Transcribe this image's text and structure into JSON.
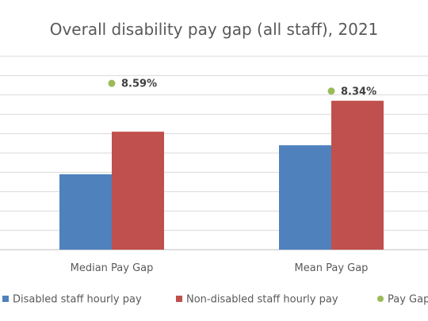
{
  "chart_data": {
    "type": "bar",
    "title": "Overall disability pay gap (all staff), 2021",
    "categories": [
      "Median Pay Gap",
      "Mean Pay Gap"
    ],
    "ylim": [
      0,
      100
    ],
    "grid": true,
    "legend_position": "bottom",
    "series": [
      {
        "name": "Disabled staff hourly pay",
        "color": "#4F81BD",
        "values": [
          39,
          54
        ]
      },
      {
        "name": "Non-disabled staff hourly pay",
        "color": "#C0504D",
        "values": [
          61,
          77
        ]
      }
    ],
    "pay_gap": {
      "name": "Pay Gap",
      "color": "#9BBB59",
      "values": [
        8.59,
        8.34
      ],
      "labels": [
        "8.59%",
        "8.34%"
      ],
      "marker_level": [
        86,
        82
      ]
    }
  }
}
